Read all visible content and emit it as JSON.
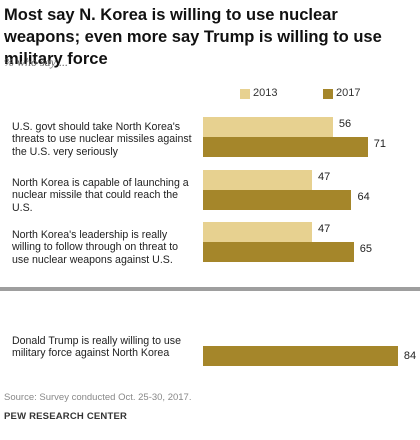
{
  "header": {
    "title": "Most say N. Korea is willing to use nuclear weapons; even more say Trump is willing to use military force",
    "subtitle": "% who say ..."
  },
  "legend": {
    "s2013": "2013",
    "s2017": "2017"
  },
  "colors": {
    "s2013": "#e7d190",
    "s2017": "#a5862a",
    "divider": "#9e9e9e"
  },
  "chart_data": {
    "type": "bar",
    "orientation": "horizontal",
    "series": [
      {
        "name": "2013",
        "values": [
          56,
          47,
          47,
          null
        ]
      },
      {
        "name": "2017",
        "values": [
          71,
          64,
          65,
          84
        ]
      }
    ],
    "categories": [
      "U.S. govt should take North Korea's threats to use nuclear missiles against the U.S. very seriously",
      "North Korea is capable of launching a nuclear missile that could reach the U.S.",
      "North Korea's leadership is really willing to follow through on threat to use nuclear weapons against U.S.",
      "Donald Trump is really willing to use military force against North Korea"
    ],
    "value_labels": {
      "2013": [
        "56",
        "47",
        "47",
        ""
      ],
      "2017": [
        "71",
        "64",
        "65",
        "84"
      ]
    },
    "xlim": [
      0,
      100
    ],
    "grid": false,
    "legend_position": "top-right"
  },
  "footer": {
    "source": "Source: Survey conducted Oct. 25-30, 2017.",
    "org": "PEW RESEARCH CENTER"
  }
}
